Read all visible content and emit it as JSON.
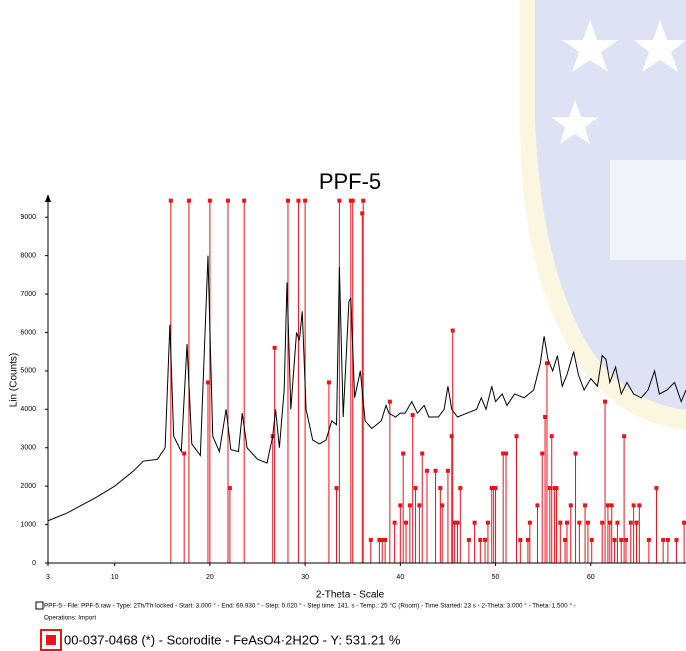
{
  "chart_data": {
    "type": "line",
    "title": "PPF-5",
    "xlabel": "2-Theta - Scale",
    "ylabel": "Lin (Counts)",
    "xlim": [
      3,
      70
    ],
    "ylim": [
      0,
      9500
    ],
    "xticks": [
      3,
      10,
      20,
      30,
      40,
      50,
      60
    ],
    "yticks": [
      0,
      1000,
      2000,
      3000,
      4000,
      5000,
      6000,
      7000,
      8000,
      9000
    ],
    "series": [
      {
        "type": "line",
        "color": "#000000",
        "x": [
          3,
          5,
          8,
          10,
          12,
          13,
          14.5,
          15.3,
          15.8,
          16.2,
          17,
          17.6,
          18.1,
          19,
          19.8,
          20.3,
          21,
          21.7,
          22.2,
          23,
          23.4,
          23.9,
          25,
          26,
          26.6,
          26.9,
          27.3,
          27.8,
          28.1,
          28.5,
          29.1,
          29.4,
          29.7,
          30.1,
          30.8,
          31.5,
          32.2,
          32.8,
          33.3,
          33.6,
          34,
          34.6,
          34.8,
          35.2,
          35.8,
          36.3,
          37,
          38,
          38.5,
          38.8,
          39.5,
          40,
          40.5,
          41.2,
          41.8,
          42.5,
          43,
          44,
          44.6,
          45,
          45.4,
          46,
          47,
          48,
          48.5,
          49,
          49.6,
          50,
          50.7,
          51.2,
          52,
          53,
          54,
          54.7,
          55.1,
          55.5,
          56,
          56.5,
          57,
          57.5,
          58.2,
          58.7,
          59.3,
          60,
          60.7,
          61.2,
          61.6,
          62,
          62.6,
          63.2,
          63.8,
          64.5,
          65.3,
          66,
          66.7,
          67.2,
          68,
          68.8,
          69.5,
          70
        ],
        "values": [
          1100,
          1300,
          1700,
          2000,
          2400,
          2650,
          2700,
          3000,
          6200,
          3300,
          2900,
          5700,
          3100,
          2800,
          8000,
          3300,
          2900,
          4000,
          2950,
          2900,
          3900,
          3000,
          2700,
          2600,
          3300,
          4000,
          3000,
          4500,
          7300,
          4000,
          6000,
          5800,
          6550,
          4000,
          3200,
          3100,
          3200,
          3700,
          3600,
          7700,
          3800,
          6800,
          6900,
          4300,
          5000,
          3700,
          3500,
          3700,
          4100,
          3900,
          3800,
          3900,
          3900,
          4200,
          3900,
          4100,
          3800,
          3800,
          4000,
          4600,
          4000,
          3800,
          3900,
          4000,
          4300,
          4000,
          4600,
          4200,
          4400,
          4100,
          4400,
          4300,
          4500,
          5200,
          5900,
          5300,
          5000,
          5400,
          4600,
          4900,
          5500,
          4900,
          4500,
          4800,
          4600,
          5400,
          5300,
          4700,
          5100,
          4400,
          4700,
          4400,
          4300,
          4500,
          5000,
          4400,
          4500,
          4700,
          4200,
          4500
        ]
      },
      {
        "type": "stick",
        "color": "#e8141a",
        "x": [
          15.9,
          17.3,
          17.8,
          19.8,
          20.0,
          21.9,
          22.1,
          23.6,
          26.6,
          26.8,
          28.2,
          29.3,
          30.0,
          32.5,
          33.3,
          33.6,
          34.8,
          35.0,
          36.0,
          36.1,
          36.9,
          37.8,
          38.1,
          38.4,
          38.9,
          39.4,
          40,
          40.3,
          40.6,
          41,
          41.3,
          41.6,
          42,
          42.3,
          42.8,
          43.7,
          44.2,
          44.4,
          45,
          45.4,
          45.5,
          45.7,
          46,
          46.3,
          47.2,
          47.8,
          48.4,
          48.9,
          49.2,
          49.6,
          49.8,
          50,
          50.8,
          51.1,
          52.2,
          52.6,
          53.4,
          53.6,
          54.4,
          54.9,
          55.2,
          55.4,
          55.7,
          55.9,
          56.2,
          56.4,
          56.8,
          57.3,
          57.5,
          57.9,
          58.4,
          58.8,
          59.4,
          59.7,
          60.1,
          61.2,
          61.5,
          61.8,
          62,
          62.2,
          62.5,
          62.8,
          63.2,
          63.5,
          63.7,
          64.2,
          64.5,
          64.8,
          65.1,
          66.1,
          66.9,
          67.6,
          68.1,
          69,
          69.8
        ],
        "values": [
          9430,
          2850,
          9430,
          4700,
          9430,
          9430,
          1950,
          9430,
          3300,
          5600,
          9430,
          9430,
          9430,
          4700,
          1950,
          9430,
          9430,
          9430,
          9100,
          9430,
          600,
          600,
          600,
          600,
          4200,
          1050,
          1500,
          2850,
          1050,
          1500,
          3850,
          1950,
          1500,
          2850,
          2400,
          2400,
          1950,
          1500,
          2400,
          3300,
          6050,
          1050,
          1050,
          1950,
          600,
          1050,
          600,
          600,
          1050,
          1950,
          1950,
          1950,
          2850,
          2850,
          3300,
          600,
          600,
          1050,
          1500,
          2850,
          3800,
          5200,
          1950,
          3300,
          1950,
          1950,
          1050,
          600,
          1050,
          1500,
          2850,
          1050,
          1500,
          1050,
          600,
          1050,
          4200,
          1500,
          1050,
          1500,
          600,
          1050,
          600,
          3300,
          600,
          1050,
          1500,
          1050,
          1500,
          600,
          1950,
          600,
          600,
          600,
          1050
        ]
      }
    ],
    "legend": [
      "PPF-5 - File: PPF-5.raw - Type: 2Th/Th locked - Start: 3.000 ° - End: 69.930 ° - Step: 0.020 ° - Step time: 141. s - Temp.: 25 °C (Room) - Time Started: 23 s - 2-Theta: 3.000 ° - Theta: 1.500 ° -",
      "Operations: Import",
      "00-037-0468 (*) - Scorodite - FeAsO4·2H2O - Y: 531.21 %"
    ]
  }
}
